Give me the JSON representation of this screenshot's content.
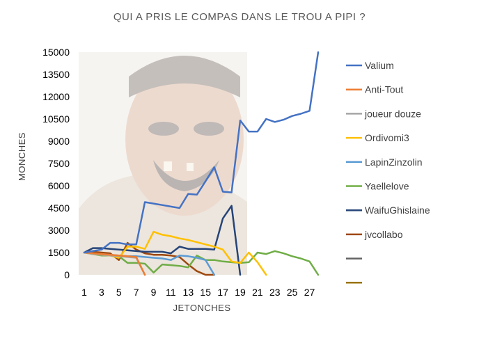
{
  "chart_data": {
    "type": "line",
    "title": "QUI A PRIS LE COMPAS DANS LE TROU A PIPI ?",
    "xlabel": "JETONCHES",
    "ylabel": "MONCHES",
    "xlim": [
      1,
      28
    ],
    "ylim": [
      0,
      15000
    ],
    "x_tick_labels": [
      "1",
      "3",
      "5",
      "7",
      "9",
      "11",
      "13",
      "15",
      "17",
      "19",
      "21",
      "23",
      "25",
      "27"
    ],
    "y_tick_labels": [
      "0",
      "1500",
      "3000",
      "4500",
      "6000",
      "7500",
      "9000",
      "10500",
      "12000",
      "13500",
      "15000"
    ],
    "grid": false,
    "legend_position": "right",
    "background_picture": "laughing-man-photo",
    "series": [
      {
        "name": "Valium",
        "color": "#4472C4",
        "x": [
          1,
          2,
          3,
          4,
          5,
          6,
          7,
          8,
          9,
          10,
          11,
          12,
          13,
          14,
          15,
          16,
          17,
          18,
          19,
          20,
          21,
          22,
          23,
          24,
          25,
          26,
          27,
          28
        ],
        "y": [
          1500,
          1600,
          1700,
          2150,
          2150,
          2050,
          2050,
          4900,
          4800,
          4700,
          4600,
          4500,
          5450,
          5400,
          6300,
          7250,
          5600,
          5550,
          10400,
          9650,
          9650,
          10500,
          10300,
          10450,
          10700,
          10850,
          11050,
          15000
        ]
      },
      {
        "name": "Anti-Tout",
        "color": "#ED7D31",
        "x": [
          1,
          2,
          3,
          4,
          5,
          6,
          7,
          8
        ],
        "y": [
          1500,
          1450,
          1400,
          1350,
          1300,
          1250,
          1200,
          0
        ]
      },
      {
        "name": "joueur douze",
        "color": "#A5A5A5",
        "x": [
          1,
          2,
          3,
          4,
          5,
          6,
          7,
          8
        ],
        "y": [
          1500,
          1400,
          1350,
          1300,
          1250,
          1200,
          1150,
          0
        ]
      },
      {
        "name": "Ordivomi3",
        "color": "#FFC000",
        "x": [
          1,
          2,
          3,
          4,
          5,
          6,
          7,
          8,
          9,
          10,
          11,
          12,
          13,
          14,
          15,
          16,
          17,
          18,
          19,
          20,
          21,
          22
        ],
        "y": [
          1500,
          1400,
          1350,
          1300,
          1150,
          1900,
          1900,
          1750,
          2900,
          2700,
          2600,
          2450,
          2350,
          2200,
          2050,
          1900,
          1700,
          900,
          800,
          1500,
          850,
          0
        ]
      },
      {
        "name": "LapinZinzolin",
        "color": "#5B9BD5",
        "x": [
          1,
          2,
          3,
          4,
          5,
          6,
          7,
          8,
          9,
          10,
          11,
          12,
          13,
          14,
          15,
          16
        ],
        "y": [
          1500,
          1450,
          1400,
          1350,
          1300,
          1250,
          1250,
          1200,
          1150,
          1100,
          1000,
          1300,
          1250,
          1150,
          1000,
          0
        ]
      },
      {
        "name": "Yaellelove",
        "color": "#70AD47",
        "x": [
          1,
          2,
          3,
          4,
          5,
          6,
          7,
          8,
          9,
          10,
          11,
          12,
          13,
          14,
          15,
          16,
          17,
          18,
          19,
          20,
          21,
          22,
          23,
          24,
          25,
          26,
          27,
          28
        ],
        "y": [
          1500,
          1400,
          1300,
          1300,
          1250,
          800,
          800,
          750,
          150,
          700,
          650,
          600,
          500,
          1300,
          1000,
          1000,
          900,
          850,
          800,
          850,
          1500,
          1400,
          1600,
          1450,
          1250,
          1100,
          900,
          0
        ]
      },
      {
        "name": "WaifuGhislaine",
        "color": "#264478",
        "x": [
          1,
          2,
          3,
          4,
          5,
          6,
          7,
          8,
          9,
          10,
          11,
          12,
          13,
          14,
          15,
          16,
          17,
          18,
          19
        ],
        "y": [
          1500,
          1800,
          1800,
          1750,
          1700,
          1650,
          1600,
          1550,
          1550,
          1550,
          1450,
          1900,
          1750,
          1750,
          1750,
          1700,
          3800,
          4650,
          0
        ]
      },
      {
        "name": "jvcollabo",
        "color": "#9E480E",
        "x": [
          1,
          2,
          3,
          4,
          5,
          6,
          7,
          8,
          9,
          10,
          11,
          12,
          13,
          14,
          15,
          16
        ],
        "y": [
          1500,
          1550,
          1500,
          1450,
          1000,
          2150,
          1700,
          1450,
          1350,
          1350,
          1300,
          1200,
          700,
          250,
          0,
          0
        ]
      },
      {
        "name": "",
        "color": "#636363",
        "x": [],
        "y": []
      },
      {
        "name": "",
        "color": "#997300",
        "x": [],
        "y": []
      }
    ]
  }
}
